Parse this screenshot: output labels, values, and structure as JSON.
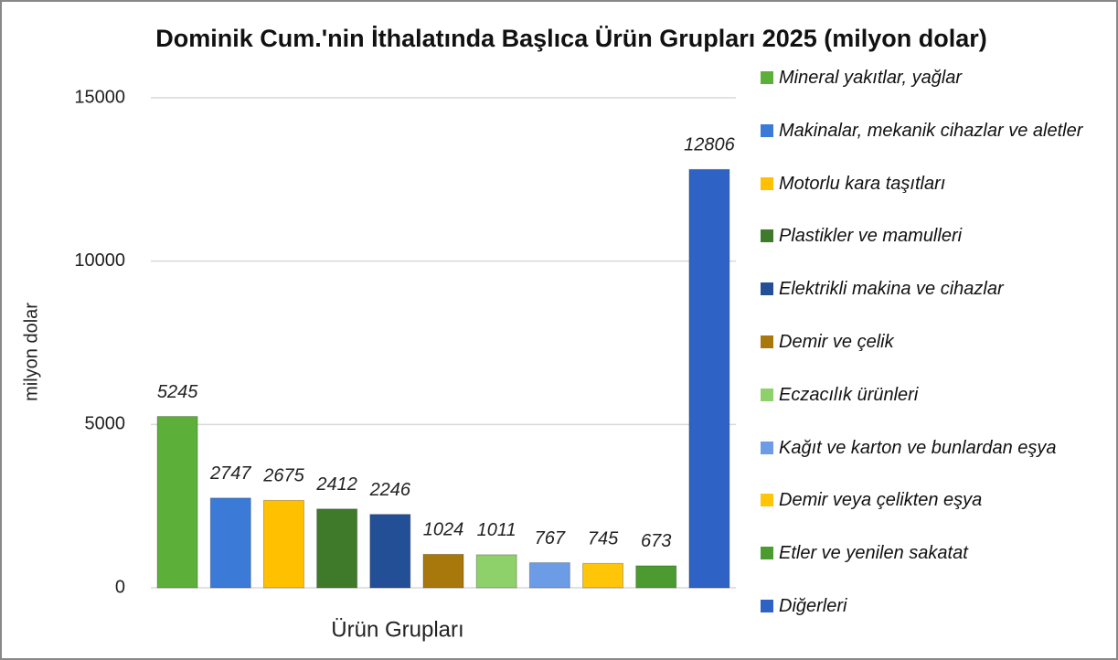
{
  "chart_data": {
    "type": "bar",
    "title": "Dominik Cum.'nin İthalatında Başlıca Ürün Grupları 2025 (milyon dolar)",
    "x_label": "Ürün Grupları",
    "y_label": "milyon dolar",
    "categories": [
      "Mineral yakıtlar, yağlar",
      "Makinalar, mekanik cihazlar ve aletler",
      "Motorlu kara taşıtları",
      "Plastikler ve mamulleri",
      "Elektrikli makina ve cihazlar",
      "Demir ve çelik",
      "Eczacılık ürünleri",
      "Kağıt ve karton ve bunlardan eşya",
      "Demir veya çelikten eşya",
      "Etler ve yenilen sakatat",
      "Diğerleri"
    ],
    "values": [
      5245,
      2747,
      2675,
      2412,
      2246,
      1024,
      1011,
      767,
      745,
      673,
      12806
    ],
    "colors": [
      "#5cb03a",
      "#3c7ad8",
      "#ffc000",
      "#3f7a2a",
      "#234f96",
      "#a8780c",
      "#8ed06a",
      "#6d9ce6",
      "#ffc508",
      "#4b9b30",
      "#2e62c4"
    ],
    "ylim": [
      0,
      15000
    ],
    "yticks": [
      0,
      5000,
      10000,
      15000
    ],
    "grid": true,
    "legend": "right"
  }
}
